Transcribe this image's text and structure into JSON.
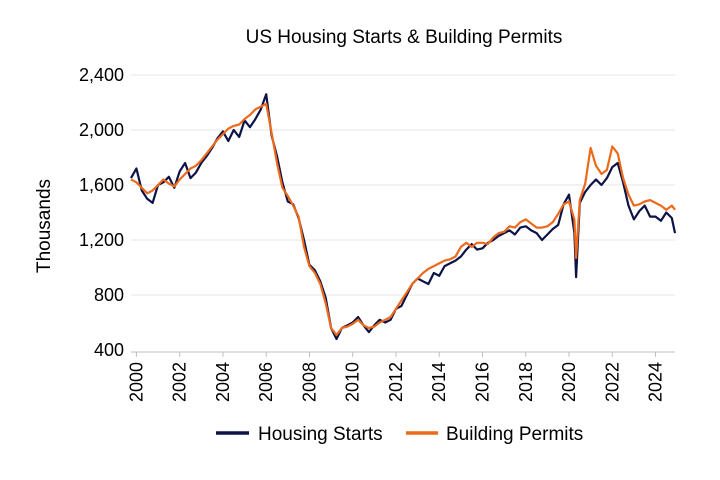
{
  "chart_data": {
    "type": "line",
    "title": "US Housing Starts & Building Permits",
    "xlabel": "",
    "ylabel": "Thousands",
    "ylim": [
      400,
      2400
    ],
    "xlim": [
      1999.75,
      2024.9
    ],
    "yticks": [
      400,
      800,
      1200,
      1600,
      2000,
      2400
    ],
    "ytick_labels": [
      "400",
      "800",
      "1,200",
      "1,600",
      "2,000",
      "2,400"
    ],
    "xticks": [
      2000,
      2002,
      2004,
      2006,
      2008,
      2010,
      2012,
      2014,
      2016,
      2018,
      2020,
      2022,
      2024
    ],
    "xtick_labels": [
      "2000",
      "2002",
      "2004",
      "2006",
      "2008",
      "2010",
      "2012",
      "2014",
      "2016",
      "2018",
      "2020",
      "2022",
      "2024"
    ],
    "grid": "horizontal",
    "legend_position": "bottom-center",
    "series": [
      {
        "name": "Housing Starts",
        "color": "#0d1247",
        "x": [
          1999.75,
          2000.0,
          2000.25,
          2000.5,
          2000.75,
          2001.0,
          2001.25,
          2001.5,
          2001.75,
          2002.0,
          2002.25,
          2002.5,
          2002.75,
          2003.0,
          2003.25,
          2003.5,
          2003.75,
          2004.0,
          2004.25,
          2004.5,
          2004.75,
          2005.0,
          2005.25,
          2005.5,
          2005.75,
          2006.0,
          2006.25,
          2006.5,
          2006.75,
          2007.0,
          2007.25,
          2007.5,
          2007.75,
          2008.0,
          2008.25,
          2008.5,
          2008.75,
          2009.0,
          2009.25,
          2009.5,
          2009.75,
          2010.0,
          2010.25,
          2010.5,
          2010.75,
          2011.0,
          2011.25,
          2011.5,
          2011.75,
          2012.0,
          2012.25,
          2012.5,
          2012.75,
          2013.0,
          2013.25,
          2013.5,
          2013.75,
          2014.0,
          2014.25,
          2014.5,
          2014.75,
          2015.0,
          2015.25,
          2015.5,
          2015.75,
          2016.0,
          2016.25,
          2016.5,
          2016.75,
          2017.0,
          2017.25,
          2017.5,
          2017.75,
          2018.0,
          2018.25,
          2018.5,
          2018.75,
          2019.0,
          2019.25,
          2019.5,
          2019.75,
          2020.0,
          2020.25,
          2020.33,
          2020.5,
          2020.75,
          2021.0,
          2021.25,
          2021.5,
          2021.75,
          2022.0,
          2022.25,
          2022.5,
          2022.75,
          2023.0,
          2023.25,
          2023.5,
          2023.75,
          2024.0,
          2024.25,
          2024.5,
          2024.75,
          2024.9
        ],
        "values": [
          1650,
          1720,
          1560,
          1500,
          1470,
          1600,
          1620,
          1660,
          1580,
          1700,
          1760,
          1650,
          1690,
          1760,
          1810,
          1870,
          1940,
          1990,
          1920,
          2000,
          1950,
          2070,
          2020,
          2080,
          2150,
          2260,
          1960,
          1810,
          1620,
          1480,
          1460,
          1360,
          1200,
          1020,
          980,
          900,
          780,
          560,
          480,
          560,
          580,
          600,
          640,
          580,
          530,
          580,
          620,
          600,
          620,
          700,
          720,
          800,
          880,
          920,
          900,
          880,
          960,
          940,
          1010,
          1030,
          1050,
          1080,
          1130,
          1170,
          1130,
          1140,
          1180,
          1200,
          1230,
          1250,
          1270,
          1240,
          1290,
          1300,
          1270,
          1250,
          1200,
          1240,
          1280,
          1310,
          1460,
          1530,
          1250,
          930,
          1470,
          1550,
          1600,
          1640,
          1600,
          1650,
          1730,
          1760,
          1620,
          1450,
          1350,
          1410,
          1450,
          1370,
          1370,
          1340,
          1400,
          1360,
          1250
        ]
      },
      {
        "name": "Building Permits",
        "color": "#ec6a1c",
        "x": [
          1999.75,
          2000.0,
          2000.25,
          2000.5,
          2000.75,
          2001.0,
          2001.25,
          2001.5,
          2001.75,
          2002.0,
          2002.25,
          2002.5,
          2002.75,
          2003.0,
          2003.25,
          2003.5,
          2003.75,
          2004.0,
          2004.25,
          2004.5,
          2004.75,
          2005.0,
          2005.25,
          2005.5,
          2005.75,
          2006.0,
          2006.25,
          2006.5,
          2006.75,
          2007.0,
          2007.25,
          2007.5,
          2007.75,
          2008.0,
          2008.25,
          2008.5,
          2008.75,
          2009.0,
          2009.25,
          2009.5,
          2009.75,
          2010.0,
          2010.25,
          2010.5,
          2010.75,
          2011.0,
          2011.25,
          2011.5,
          2011.75,
          2012.0,
          2012.25,
          2012.5,
          2012.75,
          2013.0,
          2013.25,
          2013.5,
          2013.75,
          2014.0,
          2014.25,
          2014.5,
          2014.75,
          2015.0,
          2015.25,
          2015.5,
          2015.75,
          2016.0,
          2016.25,
          2016.5,
          2016.75,
          2017.0,
          2017.25,
          2017.5,
          2017.75,
          2018.0,
          2018.25,
          2018.5,
          2018.75,
          2019.0,
          2019.25,
          2019.5,
          2019.75,
          2020.0,
          2020.25,
          2020.33,
          2020.5,
          2020.75,
          2021.0,
          2021.25,
          2021.5,
          2021.75,
          2022.0,
          2022.25,
          2022.5,
          2022.75,
          2023.0,
          2023.25,
          2023.5,
          2023.75,
          2024.0,
          2024.25,
          2024.5,
          2024.75,
          2024.9
        ],
        "values": [
          1640,
          1620,
          1580,
          1540,
          1560,
          1600,
          1640,
          1610,
          1590,
          1640,
          1680,
          1720,
          1740,
          1780,
          1830,
          1880,
          1930,
          1970,
          2010,
          2030,
          2040,
          2080,
          2110,
          2150,
          2170,
          2190,
          1980,
          1760,
          1580,
          1520,
          1450,
          1370,
          1150,
          1010,
          960,
          880,
          740,
          560,
          510,
          560,
          570,
          590,
          620,
          580,
          560,
          570,
          600,
          620,
          640,
          700,
          760,
          820,
          880,
          920,
          960,
          990,
          1010,
          1030,
          1050,
          1060,
          1080,
          1150,
          1180,
          1150,
          1180,
          1180,
          1170,
          1220,
          1250,
          1260,
          1300,
          1290,
          1330,
          1350,
          1320,
          1290,
          1290,
          1300,
          1330,
          1390,
          1460,
          1480,
          1350,
          1070,
          1490,
          1610,
          1870,
          1740,
          1680,
          1710,
          1880,
          1830,
          1650,
          1530,
          1450,
          1460,
          1480,
          1490,
          1470,
          1450,
          1420,
          1450,
          1420
        ]
      }
    ]
  }
}
